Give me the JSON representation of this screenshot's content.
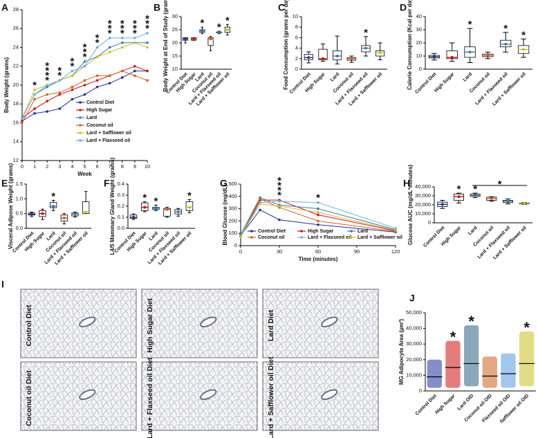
{
  "chart_data": [
    {
      "type": "line",
      "label": "A",
      "ylabel": "Body Weight (grams)",
      "xlabel": "Week",
      "x": [
        0,
        1,
        2,
        3,
        4,
        5,
        6,
        7,
        8,
        9,
        10
      ],
      "xlim": [
        0,
        10
      ],
      "xticks": [
        0,
        1,
        2,
        3,
        4,
        5,
        6,
        7,
        8,
        9,
        10
      ],
      "ylim": [
        12,
        28
      ],
      "yticks": [
        12,
        14,
        16,
        18,
        20,
        22,
        24,
        26,
        28
      ],
      "legend": "lower right",
      "series": [
        {
          "name": "Control Diet",
          "color": "#1f2f9f",
          "values": [
            16.2,
            17,
            17.2,
            17.5,
            18.5,
            19,
            19.8,
            20.2,
            20.8,
            21.5,
            21.5
          ]
        },
        {
          "name": "High Sugar",
          "color": "#d01010",
          "values": [
            16.5,
            17.5,
            18.3,
            19,
            19.5,
            20,
            20.5,
            21,
            21.5,
            22,
            21.5
          ]
        },
        {
          "name": "Lard",
          "color": "#3a7bb0",
          "values": [
            16.5,
            19,
            19.8,
            20.5,
            21,
            22.5,
            23,
            24,
            24.5,
            24.5,
            24.5
          ]
        },
        {
          "name": "Coconut oil",
          "color": "#d06020",
          "values": [
            16,
            18.5,
            19,
            19.2,
            19.8,
            20.5,
            21,
            21,
            21.5,
            21,
            20.5
          ]
        },
        {
          "name": "Lard + Safflower oil",
          "color": "#c8c020",
          "values": [
            16.5,
            19.5,
            20,
            20.5,
            21,
            22,
            23,
            23.5,
            24,
            24.5,
            24
          ]
        },
        {
          "name": "Lard + Flaxseed oil",
          "color": "#6aaee0",
          "values": [
            16.5,
            19,
            20,
            20.5,
            21.5,
            22,
            24,
            25,
            25,
            25,
            25.5
          ]
        }
      ],
      "annotations": [
        {
          "x": 1,
          "text": "*",
          "color": "#6aaee0"
        },
        {
          "x": 2,
          "text": "*",
          "color": "#6aaee0"
        },
        {
          "x": 2,
          "text": "*",
          "color": "#3a7bb0"
        },
        {
          "x": 2,
          "text": "*",
          "color": "#c8c020"
        },
        {
          "x": 2,
          "text": "*",
          "color": "#d06020"
        },
        {
          "x": 3,
          "text": "*",
          "color": "#6aaee0"
        },
        {
          "x": 3,
          "text": "*",
          "color": "#3a7bb0"
        },
        {
          "x": 4,
          "text": "*",
          "color": "#6aaee0"
        },
        {
          "x": 4,
          "text": "*",
          "color": "#3a7bb0"
        },
        {
          "x": 5,
          "text": "*",
          "color": "#6aaee0"
        },
        {
          "x": 5,
          "text": "*",
          "color": "#3a7bb0"
        },
        {
          "x": 5,
          "text": "*",
          "color": "#c8c020"
        },
        {
          "x": 6,
          "text": "*",
          "color": "#6aaee0"
        },
        {
          "x": 6,
          "text": "*",
          "color": "#c8c020"
        },
        {
          "x": 7,
          "text": "*",
          "color": "#6aaee0"
        },
        {
          "x": 7,
          "text": "*",
          "color": "#3a7bb0"
        },
        {
          "x": 7,
          "text": "*",
          "color": "#c8c020"
        },
        {
          "x": 8,
          "text": "*",
          "color": "#6aaee0"
        },
        {
          "x": 8,
          "text": "*",
          "color": "#3a7bb0"
        },
        {
          "x": 8,
          "text": "*",
          "color": "#c8c020"
        },
        {
          "x": 9,
          "text": "*",
          "color": "#6aaee0"
        },
        {
          "x": 9,
          "text": "*",
          "color": "#3a7bb0"
        },
        {
          "x": 9,
          "text": "*",
          "color": "#c8c020"
        },
        {
          "x": 10,
          "text": "*",
          "color": "#6aaee0"
        },
        {
          "x": 10,
          "text": "*",
          "color": "#3a7bb0"
        },
        {
          "x": 10,
          "text": "*",
          "color": "#c8c020"
        }
      ]
    },
    {
      "type": "box",
      "label": "B",
      "ylabel": "Body Weight at End of Study (grams)",
      "categories": [
        "Control Diet",
        "High Sugar",
        "Lard",
        "Coconut oil",
        "Lard + Flaxseed oil",
        "Lard + Safflower oil"
      ],
      "colors": [
        "#1f2f9f",
        "#d01010",
        "#3a7bb0",
        "#d06020",
        "#3a7bb0",
        "#c8c020"
      ],
      "ylim": [
        10,
        30
      ],
      "yticks": [
        10,
        15,
        20,
        25,
        30
      ],
      "min": [
        20,
        21,
        23.5,
        17,
        23.5,
        23
      ],
      "q1": [
        21,
        21,
        24,
        19,
        23.8,
        24
      ],
      "median": [
        21.5,
        21.5,
        24.5,
        21.5,
        24,
        25
      ],
      "q3": [
        22,
        22,
        25,
        22,
        24.2,
        26
      ],
      "max": [
        22,
        22,
        26,
        22.5,
        24.5,
        27
      ],
      "annotations": [
        {
          "category": "Lard",
          "text": "*"
        },
        {
          "category": "Lard + Flaxseed oil",
          "text": "*"
        },
        {
          "category": "Lard + Safflower oil",
          "text": "*"
        }
      ]
    },
    {
      "type": "box",
      "label": "C",
      "ylabel": "Food Consumption (grams per day)",
      "categories": [
        "Control Diet",
        "High Sugar",
        "Lard",
        "Coconut oil",
        "Lard + Flaxseed oil",
        "Lard + Safflower oil"
      ],
      "colors": [
        "#1f2f9f",
        "#d01010",
        "#3a7bb0",
        "#d06020",
        "#3a7bb0",
        "#c8c020"
      ],
      "ylim": [
        0,
        10
      ],
      "yticks": [
        0,
        2,
        4,
        6,
        8,
        10
      ],
      "min": [
        1.2,
        1.5,
        1,
        1.3,
        2.5,
        1.8
      ],
      "q1": [
        1.8,
        1.8,
        1.8,
        1.7,
        3.3,
        2.5
      ],
      "median": [
        2.2,
        2,
        2.5,
        2,
        4,
        3.1
      ],
      "q3": [
        2.8,
        3.8,
        3.5,
        2.2,
        4.5,
        3.5
      ],
      "max": [
        3.3,
        4.8,
        6.3,
        2.5,
        6.2,
        5
      ],
      "annotations": [
        {
          "category": "Lard + Flaxseed oil",
          "text": "*"
        }
      ]
    },
    {
      "type": "box",
      "label": "D",
      "ylabel": "Calorie Consumption (Kcal per day)",
      "categories": [
        "Control Diet",
        "High Sugar",
        "Lard",
        "Coconut oil",
        "Lard + Flaxseed oil",
        "Lard + Safflower oil"
      ],
      "colors": [
        "#1f2f9f",
        "#d01010",
        "#3a7bb0",
        "#d06020",
        "#3a7bb0",
        "#c8c020"
      ],
      "ylim": [
        0,
        40
      ],
      "yticks": [
        0,
        10,
        20,
        30,
        40
      ],
      "min": [
        7,
        6,
        5,
        8,
        13,
        9
      ],
      "q1": [
        8.5,
        8,
        9,
        9.5,
        17,
        12
      ],
      "median": [
        9.5,
        9,
        13,
        10.5,
        19,
        15
      ],
      "q3": [
        10.5,
        14,
        17,
        11.5,
        22,
        18
      ],
      "max": [
        12,
        20,
        31,
        13,
        28,
        23
      ],
      "annotations": [
        {
          "category": "Lard",
          "text": "*"
        },
        {
          "category": "Lard + Flaxseed oil",
          "text": "*"
        },
        {
          "category": "Lard + Safflower oil",
          "text": "*"
        }
      ]
    },
    {
      "type": "box",
      "label": "E",
      "ylabel": "Visceral Adipose Weight (grams)",
      "categories": [
        "Control Diet",
        "High Sugar",
        "Lard",
        "Coconut oil",
        "Lard + Flaxseed oil",
        "Lard + Safflower oil"
      ],
      "colors": [
        "#1f2f9f",
        "#d01010",
        "#3a7bb0",
        "#d06020",
        "#3a7bb0",
        "#c8c020"
      ],
      "ylim": [
        0,
        1.5
      ],
      "yticks": [
        {
          "value": 0,
          "label": "0.0"
        },
        0.5,
        {
          "value": 1,
          "label": "1.0"
        },
        1.5
      ],
      "min": [
        0.4,
        0.3,
        0.6,
        0.15,
        0.38,
        0.5
      ],
      "q1": [
        0.45,
        0.4,
        0.7,
        0.25,
        0.42,
        0.5
      ],
      "median": [
        0.48,
        0.5,
        0.75,
        0.35,
        0.48,
        0.55
      ],
      "q3": [
        0.52,
        0.6,
        0.88,
        0.45,
        0.52,
        0.9
      ],
      "max": [
        0.55,
        0.65,
        0.95,
        0.5,
        0.55,
        1.25
      ],
      "annotations": [
        {
          "category": "Lard",
          "text": "*"
        }
      ]
    },
    {
      "type": "box",
      "label": "F",
      "ylabel": "L4/5 Mammary Gland Weight (grams)",
      "categories": [
        "Control Diet",
        "High Sugar",
        "Lard",
        "Coconut oil",
        "Lard + Flaxseed oil",
        "Lard + Safflower oil"
      ],
      "colors": [
        "#1f2f9f",
        "#d01010",
        "#3a7bb0",
        "#d06020",
        "#3a7bb0",
        "#c8c020"
      ],
      "ylim": [
        0,
        0.4
      ],
      "yticks": [
        {
          "value": 0,
          "label": "0.0"
        },
        0.1,
        0.2,
        0.3,
        0.4
      ],
      "min": [
        0.08,
        0.15,
        0.16,
        0.1,
        0.11,
        0.14
      ],
      "q1": [
        0.09,
        0.16,
        0.17,
        0.11,
        0.13,
        0.16
      ],
      "median": [
        0.1,
        0.19,
        0.18,
        0.17,
        0.15,
        0.19
      ],
      "q3": [
        0.12,
        0.23,
        0.19,
        0.18,
        0.17,
        0.24
      ],
      "max": [
        0.13,
        0.24,
        0.21,
        0.19,
        0.18,
        0.26
      ],
      "annotations": [
        {
          "category": "High Sugar",
          "text": "*"
        },
        {
          "category": "Lard",
          "text": "*"
        },
        {
          "category": "Lard + Safflower oil",
          "text": "*"
        }
      ]
    },
    {
      "type": "line",
      "label": "G",
      "ylabel": "Blood Glucose (mg/dL)",
      "xlabel": "Time (minutes)",
      "x": [
        0,
        15,
        30,
        60,
        120
      ],
      "xlim": [
        0,
        120
      ],
      "xticks": [
        0,
        30,
        60,
        90,
        120
      ],
      "ylim": [
        0,
        500
      ],
      "yticks": [
        0,
        100,
        200,
        300,
        400,
        500
      ],
      "legend": "lower center",
      "series": [
        {
          "name": "Control Diet",
          "color": "#1f2f9f",
          "values": [
            80,
            290,
            210,
            170,
            110
          ]
        },
        {
          "name": "High Sugar",
          "color": "#d01010",
          "values": [
            70,
            370,
            370,
            250,
            120
          ]
        },
        {
          "name": "Lard",
          "color": "#3a7bb0",
          "values": [
            90,
            390,
            330,
            300,
            130
          ]
        },
        {
          "name": "Coconut oil",
          "color": "#d06020",
          "values": [
            75,
            380,
            310,
            200,
            115
          ]
        },
        {
          "name": "Lard + Flaxseed oil",
          "color": "#6aaee0",
          "values": [
            80,
            350,
            360,
            350,
            140
          ]
        },
        {
          "name": "Lard + Safflower oil",
          "color": "#c8c020",
          "values": [
            70,
            340,
            320,
            270,
            125
          ]
        }
      ],
      "annotations": [
        {
          "x": 30,
          "text": "*",
          "color": "#6aaee0"
        },
        {
          "x": 30,
          "text": "*",
          "color": "#3a7bb0"
        },
        {
          "x": 30,
          "text": "*",
          "color": "#d01010"
        },
        {
          "x": 30,
          "text": "*",
          "color": "#d06020"
        },
        {
          "x": 60,
          "text": "*",
          "color": "#6aaee0"
        }
      ]
    },
    {
      "type": "box",
      "label": "H",
      "ylabel": "Glucose AUC (mg/dL*minutes)",
      "categories": [
        "Control Diet",
        "High Sugar",
        "Lard",
        "Coconut oil",
        "Lard + Flaxseed oil",
        "Lard + Safflower oil"
      ],
      "colors": [
        "#1f2f9f",
        "#d01010",
        "#3a7bb0",
        "#d06020",
        "#3a7bb0",
        "#c8c020"
      ],
      "ylim": [
        0,
        40000
      ],
      "yticks": [
        0,
        {
          "value": 10000,
          "label": "10,000"
        },
        {
          "value": 20000,
          "label": "20,000"
        },
        {
          "value": 30000,
          "label": "30,000"
        },
        {
          "value": 40000,
          "label": "40,000"
        }
      ],
      "min": [
        16000,
        22000,
        28000,
        24000,
        21000,
        20500
      ],
      "q1": [
        18000,
        25000,
        29500,
        25000,
        22500,
        21000
      ],
      "median": [
        20500,
        29000,
        30500,
        27000,
        24000,
        21500
      ],
      "q3": [
        23000,
        32000,
        32000,
        28500,
        25000,
        22000
      ],
      "max": [
        25000,
        33000,
        33000,
        29000,
        26500,
        22500
      ],
      "annotations": [
        {
          "category": "High Sugar",
          "text": "*"
        },
        {
          "category": "Lard",
          "text": "*"
        }
      ],
      "brackets": [
        {
          "from": "Lard",
          "to": "Lard + Safflower oil",
          "text": "*"
        }
      ]
    },
    {
      "type": "images",
      "label": "I",
      "captions": [
        "Control Diet",
        "High Sugar Diet",
        "Lard Diet",
        "Coconut oil Diet",
        "Lard + Flaxseed oil Diet",
        "Lard + Safflower oil Diet"
      ]
    },
    {
      "type": "strip",
      "label": "J",
      "ylabel": "MG Adipocyte Area (µm²)",
      "categories": [
        "Control Diet",
        "High Sugar",
        "Lard OID",
        "Coconut oil OID",
        "Flaxseed oil OID",
        "Safflower oil OID"
      ],
      "colors": [
        "#1f2f9f",
        "#d01010",
        "#2a6080",
        "#d06020",
        "#5599dd",
        "#c8c020"
      ],
      "ylim": [
        0,
        50000
      ],
      "yticks": [
        0,
        {
          "value": 10000,
          "label": "10,000"
        },
        {
          "value": 20000,
          "label": "20,000"
        },
        {
          "value": 30000,
          "label": "30,000"
        },
        {
          "value": 40000,
          "label": "40,000"
        },
        {
          "value": 50000,
          "label": "50,000"
        }
      ],
      "mean": [
        9000,
        15000,
        17500,
        9500,
        11000,
        17500
      ],
      "min": [
        2000,
        2000,
        3000,
        2000,
        2000,
        3000
      ],
      "max": [
        20000,
        32000,
        42000,
        22000,
        24000,
        38000
      ],
      "annotations": [
        {
          "category": "High Sugar",
          "text": "*"
        },
        {
          "category": "Lard OID",
          "text": "*"
        },
        {
          "category": "Safflower oil OID",
          "text": "*"
        }
      ]
    }
  ]
}
